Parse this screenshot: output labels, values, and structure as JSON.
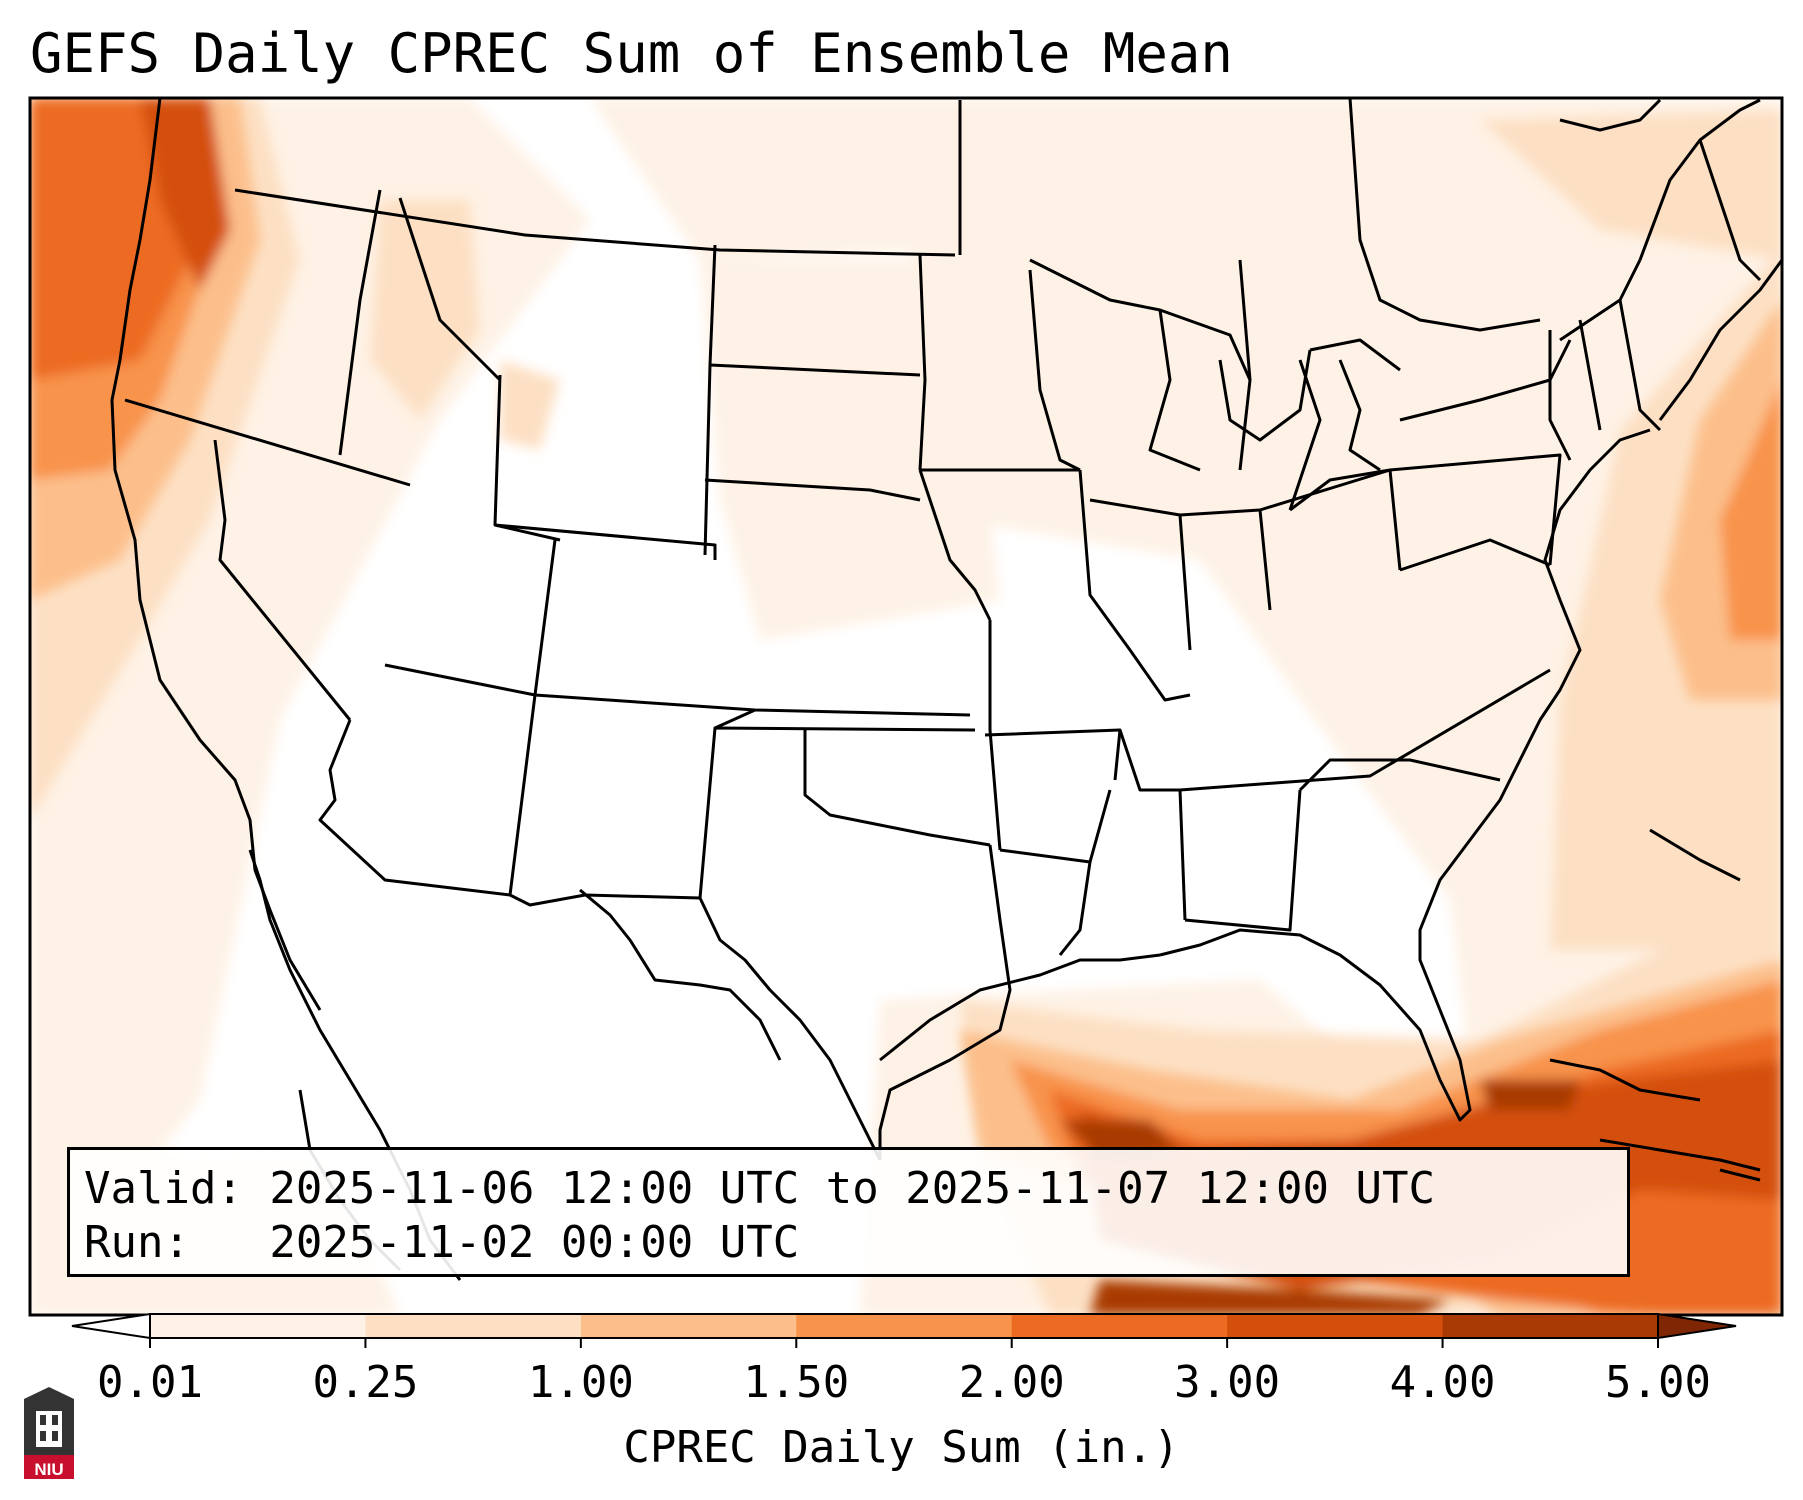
{
  "title": "GEFS Daily CPREC Sum of Ensemble Mean",
  "info": {
    "valid_line": "Valid: 2025-11-06 12:00 UTC to 2025-11-07 12:00 UTC",
    "run_line": "Run:   2025-11-02 00:00 UTC"
  },
  "colorbar": {
    "label": "CPREC Daily Sum (in.)",
    "ticks": [
      "0.01",
      "0.25",
      "1.00",
      "1.50",
      "2.00",
      "3.00",
      "4.00",
      "5.00"
    ],
    "colors": [
      "#fef2e6",
      "#fde0c4",
      "#fcbf8b",
      "#f8934c",
      "#ec6a21",
      "#d44f0c",
      "#a93a05"
    ],
    "under_color": "#ffffff",
    "over_color": "#7f2704"
  },
  "logo": {
    "text": "NIU"
  }
}
